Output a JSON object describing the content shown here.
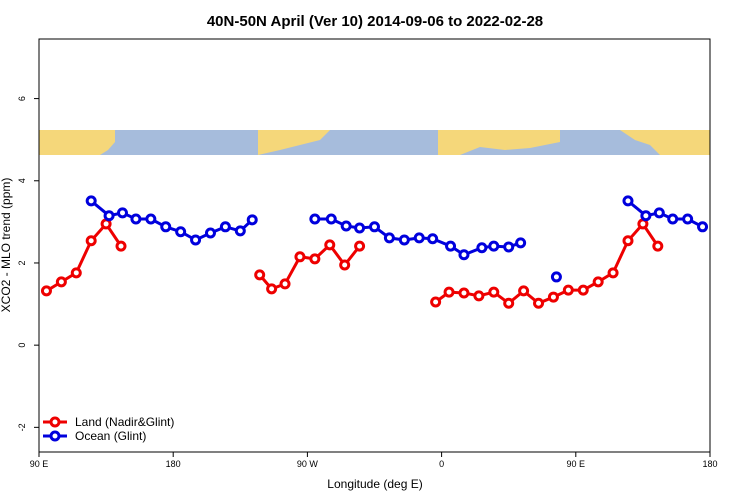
{
  "chart_data": {
    "type": "line",
    "title": "40N-50N April (Ver 10)   2014-09-06 to 2022-02-28",
    "x_label": "Longitude (deg E)",
    "y_label": "XCO2 - MLO trend (ppm)",
    "xlim": [
      90,
      540
    ],
    "ylim": [
      -2.6,
      7.45
    ],
    "xticks": [
      {
        "value": 90,
        "label": "90 E"
      },
      {
        "value": 180,
        "label": "180"
      },
      {
        "value": 270,
        "label": "90 W"
      },
      {
        "value": 360,
        "label": "0"
      },
      {
        "value": 450,
        "label": "90 E"
      },
      {
        "value": 540,
        "label": "180"
      }
    ],
    "yticks": [
      -2,
      0,
      2,
      4,
      6
    ],
    "legend": "bottom-left",
    "series": [
      {
        "name": "Land (Nadir&Glint)",
        "color": "#ee0000",
        "x": [
          95,
          105,
          115,
          125,
          135,
          145,
          null,
          238,
          246,
          255,
          265,
          275,
          285,
          295,
          305,
          null,
          356,
          365,
          375,
          385,
          395,
          405,
          415,
          425,
          435,
          445,
          455,
          465,
          475,
          485,
          495,
          505
        ],
        "values": [
          1.32,
          1.54,
          1.76,
          2.54,
          2.95,
          2.41,
          null,
          1.71,
          1.37,
          1.49,
          2.15,
          2.1,
          2.44,
          1.95,
          2.41,
          null,
          1.05,
          1.29,
          1.27,
          1.2,
          1.29,
          1.02,
          1.32,
          1.02,
          1.17,
          1.34,
          1.34,
          1.54,
          1.76,
          2.54,
          2.95,
          2.41
        ]
      },
      {
        "name": "Ocean (Glint)",
        "color": "#0000dd",
        "x": [
          125,
          137,
          146,
          155,
          165,
          175,
          185,
          195,
          205,
          215,
          225,
          233,
          null,
          275,
          286,
          296,
          305,
          315,
          325,
          335,
          345,
          354,
          366,
          375,
          387,
          395,
          405,
          413,
          null,
          437,
          null,
          485,
          497,
          506,
          515,
          525,
          535
        ],
        "values": [
          3.51,
          3.15,
          3.22,
          3.07,
          3.07,
          2.88,
          2.76,
          2.56,
          2.73,
          2.88,
          2.78,
          3.05,
          null,
          3.07,
          3.07,
          2.9,
          2.85,
          2.88,
          2.61,
          2.56,
          2.61,
          2.59,
          2.41,
          2.2,
          2.37,
          2.41,
          2.39,
          2.49,
          null,
          1.66,
          null,
          3.51,
          3.15,
          3.22,
          3.07,
          3.07,
          2.88
        ]
      }
    ]
  }
}
